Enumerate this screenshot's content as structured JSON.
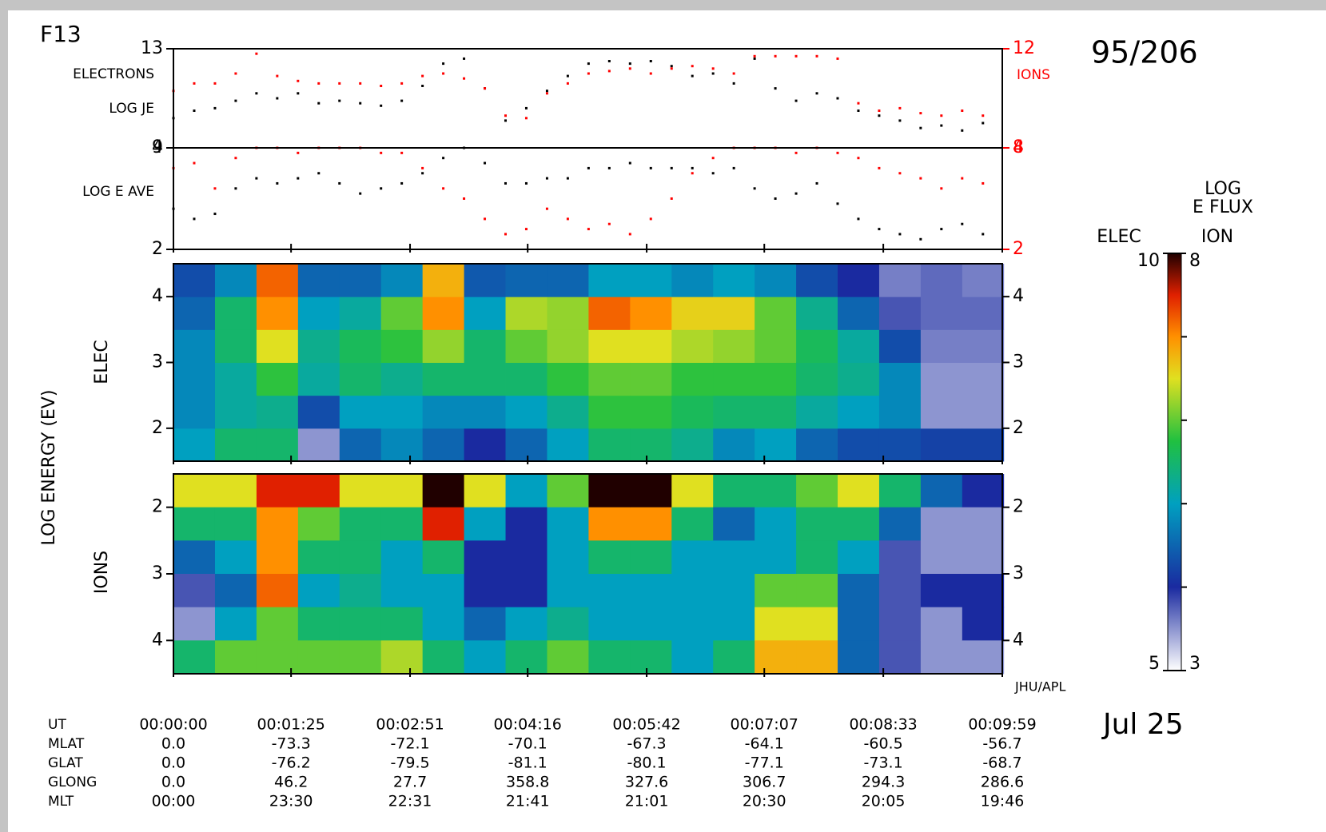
{
  "satellite": "F13",
  "date_code": "95/206",
  "date": "Jul 25",
  "credit": "JHU/APL",
  "energy_axis_label": "LOG ENERGY (EV)",
  "xlim": [
    0,
    599
  ],
  "xticks": [
    0,
    85,
    171,
    256,
    342,
    427,
    513,
    599
  ],
  "chart_data": [
    {
      "type": "scatter",
      "y_axis_labels": [
        "ELECTRONS",
        "LOG JE"
      ],
      "y2_axis_label": "IONS",
      "ylim": [
        9,
        13
      ],
      "yticks": [
        9,
        13
      ],
      "y2lim": [
        8,
        12
      ],
      "y2ticks": [
        8,
        12
      ],
      "x": [
        0,
        15,
        30,
        45,
        60,
        75,
        90,
        105,
        120,
        135,
        150,
        165,
        180,
        195,
        210,
        225,
        240,
        255,
        270,
        285,
        300,
        315,
        330,
        345,
        360,
        375,
        390,
        405,
        420,
        435,
        450,
        465,
        480,
        495,
        510,
        525,
        540,
        555,
        570,
        585
      ],
      "series": [
        {
          "color": "#000000",
          "axis": "y",
          "values": [
            10.2,
            10.5,
            10.6,
            10.9,
            11.2,
            11.0,
            11.2,
            10.8,
            10.9,
            10.8,
            10.7,
            10.9,
            11.5,
            12.4,
            12.6,
            11.4,
            10.1,
            10.6,
            11.3,
            11.9,
            12.4,
            12.5,
            12.4,
            12.5,
            12.3,
            11.9,
            12.0,
            11.6,
            12.6,
            11.4,
            10.9,
            11.2,
            11.0,
            10.5,
            10.3,
            10.1,
            9.8,
            9.9,
            9.7,
            10.0
          ]
        },
        {
          "color": "#ff0000",
          "axis": "y2",
          "values": [
            10.3,
            10.6,
            10.6,
            11.0,
            11.8,
            10.9,
            10.7,
            10.6,
            10.6,
            10.6,
            10.5,
            10.6,
            10.9,
            11.0,
            10.8,
            10.4,
            9.3,
            9.2,
            10.2,
            10.6,
            11.0,
            11.1,
            11.2,
            11.0,
            11.2,
            11.3,
            11.2,
            11.0,
            11.7,
            11.7,
            11.7,
            11.7,
            11.6,
            9.8,
            9.5,
            9.6,
            9.4,
            9.3,
            9.5,
            9.3
          ]
        }
      ]
    },
    {
      "type": "scatter",
      "y_axis_labels": [
        "LOG E AVE"
      ],
      "ylim": [
        2,
        4
      ],
      "yticks": [
        2,
        4
      ],
      "y2lim": [
        2,
        4
      ],
      "y2ticks": [
        2,
        4
      ],
      "x": [
        0,
        15,
        30,
        45,
        60,
        75,
        90,
        105,
        120,
        135,
        150,
        165,
        180,
        195,
        210,
        225,
        240,
        255,
        270,
        285,
        300,
        315,
        330,
        345,
        360,
        375,
        390,
        405,
        420,
        435,
        450,
        465,
        480,
        495,
        510,
        525,
        540,
        555,
        570,
        585
      ],
      "series": [
        {
          "color": "#000000",
          "axis": "y",
          "values": [
            2.8,
            2.6,
            2.7,
            3.2,
            3.4,
            3.3,
            3.4,
            3.5,
            3.3,
            3.1,
            3.2,
            3.3,
            3.5,
            3.8,
            4.0,
            3.7,
            3.3,
            3.3,
            3.4,
            3.4,
            3.6,
            3.6,
            3.7,
            3.6,
            3.6,
            3.6,
            3.5,
            3.6,
            3.2,
            3.0,
            3.1,
            3.3,
            2.9,
            2.6,
            2.4,
            2.3,
            2.2,
            2.4,
            2.5,
            2.3
          ]
        },
        {
          "color": "#ff0000",
          "axis": "y2",
          "values": [
            3.6,
            3.7,
            3.2,
            3.8,
            4.0,
            4.0,
            3.9,
            4.0,
            4.0,
            4.0,
            3.9,
            3.9,
            3.6,
            3.2,
            3.0,
            2.6,
            2.3,
            2.4,
            2.8,
            2.6,
            2.4,
            2.5,
            2.3,
            2.6,
            3.0,
            3.5,
            3.8,
            4.0,
            4.0,
            4.0,
            3.9,
            4.0,
            3.9,
            3.8,
            3.6,
            3.5,
            3.4,
            3.2,
            3.4,
            3.3
          ]
        }
      ]
    },
    {
      "type": "heatmap",
      "ylabel": "ELEC",
      "ylim": [
        1.5,
        4.5
      ],
      "yticks": [
        2,
        3,
        4
      ],
      "zlim": [
        5,
        10
      ],
      "x": [
        15,
        45,
        75,
        105,
        135,
        165,
        195,
        225,
        255,
        285,
        315,
        345,
        375,
        405,
        435,
        465,
        495,
        525,
        555,
        585
      ],
      "y": [
        1.75,
        2.25,
        2.75,
        3.25,
        3.75,
        4.25
      ],
      "values": [
        [
          7,
          6.8,
          6.8,
          6.8,
          6.5,
          6.3
        ],
        [
          7.5,
          7.2,
          7.2,
          7.5,
          7.5,
          6.8
        ],
        [
          7.5,
          7.3,
          7.8,
          8.5,
          9.0,
          9.2
        ],
        [
          5.5,
          6.3,
          7.2,
          7.3,
          7.0,
          6.5
        ],
        [
          6.5,
          7.0,
          7.5,
          7.6,
          7.2,
          6.5
        ],
        [
          6.8,
          7.0,
          7.3,
          7.8,
          8.0,
          6.8
        ],
        [
          6.5,
          6.8,
          7.5,
          8.2,
          9.0,
          8.8
        ],
        [
          6.0,
          6.8,
          7.5,
          7.5,
          7.0,
          6.4
        ],
        [
          6.5,
          7.0,
          7.5,
          8.0,
          8.3,
          6.5
        ],
        [
          7.0,
          7.3,
          7.8,
          8.2,
          8.2,
          6.5
        ],
        [
          7.5,
          7.8,
          8.0,
          8.5,
          9.2,
          7.0
        ],
        [
          7.5,
          7.8,
          8.0,
          8.5,
          9.0,
          7.0
        ],
        [
          7.3,
          7.6,
          7.8,
          8.3,
          8.6,
          6.8
        ],
        [
          6.8,
          7.5,
          7.8,
          8.2,
          8.6,
          7.0
        ],
        [
          7.0,
          7.5,
          7.8,
          8.0,
          8.0,
          6.8
        ],
        [
          6.5,
          7.2,
          7.5,
          7.6,
          7.3,
          6.3
        ],
        [
          6.3,
          7.0,
          7.3,
          7.2,
          6.5,
          6.0
        ],
        [
          6.3,
          6.8,
          6.8,
          6.3,
          5.8,
          5.6
        ],
        [
          6.2,
          5.5,
          5.5,
          5.6,
          5.7,
          5.7
        ],
        [
          6.2,
          5.5,
          5.5,
          5.6,
          5.7,
          5.6
        ]
      ]
    },
    {
      "type": "heatmap",
      "ylabel": "IONS",
      "ylim": [
        4.5,
        1.5
      ],
      "yticks": [
        2,
        3,
        4
      ],
      "zlim": [
        3,
        8
      ],
      "x": [
        15,
        45,
        75,
        105,
        135,
        165,
        195,
        225,
        255,
        285,
        315,
        345,
        375,
        405,
        435,
        465,
        495,
        525,
        555,
        585
      ],
      "y": [
        1.75,
        2.25,
        2.75,
        3.25,
        3.75,
        4.25
      ],
      "values": [
        [
          6.5,
          5.5,
          4.5,
          3.8,
          3.5,
          5.5
        ],
        [
          6.5,
          5.5,
          5.0,
          4.5,
          5.0,
          6.0
        ],
        [
          7.5,
          7.0,
          7.0,
          7.2,
          6.0,
          6.0
        ],
        [
          7.5,
          6.0,
          5.5,
          5.0,
          5.5,
          6.0
        ],
        [
          6.5,
          5.5,
          5.5,
          5.3,
          5.5,
          6.0
        ],
        [
          6.5,
          5.5,
          5.0,
          5.0,
          5.5,
          6.3
        ],
        [
          8.0,
          7.5,
          5.5,
          5.0,
          5.0,
          5.5
        ],
        [
          6.5,
          5.0,
          4.0,
          4.0,
          4.5,
          5.0
        ],
        [
          5.0,
          4.0,
          4.0,
          4.0,
          5.0,
          5.5
        ],
        [
          6.0,
          5.0,
          5.0,
          5.0,
          5.3,
          6.0
        ],
        [
          8.0,
          7.0,
          5.5,
          5.0,
          5.0,
          5.5
        ],
        [
          8.0,
          7.0,
          5.5,
          5.0,
          5.0,
          5.5
        ],
        [
          6.5,
          5.5,
          5.0,
          5.0,
          5.0,
          5.0
        ],
        [
          5.5,
          4.5,
          5.0,
          5.0,
          5.0,
          5.5
        ],
        [
          5.5,
          5.0,
          5.0,
          6.0,
          6.5,
          6.8
        ],
        [
          6.0,
          5.5,
          5.5,
          6.0,
          6.5,
          6.8
        ],
        [
          6.5,
          5.5,
          5.0,
          4.5,
          4.5,
          4.5
        ],
        [
          5.5,
          4.5,
          3.8,
          3.8,
          3.8,
          3.8
        ],
        [
          4.5,
          3.5,
          3.5,
          4.0,
          3.5,
          3.5
        ],
        [
          4.0,
          3.5,
          3.5,
          4.0,
          4.0,
          3.5
        ]
      ]
    }
  ],
  "colorbar": {
    "title": [
      "LOG",
      "E FLUX"
    ],
    "elec_label": "ELEC",
    "ion_label": "ION",
    "elec_ticks": [
      5,
      10
    ],
    "ion_ticks": [
      3,
      8
    ],
    "elec_minor_ticks": [
      6,
      7,
      8,
      9
    ]
  },
  "ephemeris": {
    "rows": [
      [
        "UT",
        "00:00:00",
        "00:01:25",
        "00:02:51",
        "00:04:16",
        "00:05:42",
        "00:07:07",
        "00:08:33",
        "00:09:59"
      ],
      [
        "MLAT",
        "0.0",
        "-73.3",
        "-72.1",
        "-70.1",
        "-67.3",
        "-64.1",
        "-60.5",
        "-56.7"
      ],
      [
        "GLAT",
        "0.0",
        "-76.2",
        "-79.5",
        "-81.1",
        "-80.1",
        "-77.1",
        "-73.1",
        "-68.7"
      ],
      [
        "GLONG",
        "0.0",
        "46.2",
        "27.7",
        "358.8",
        "327.6",
        "306.7",
        "294.3",
        "286.6"
      ],
      [
        "MLT",
        "00:00",
        "23:30",
        "22:31",
        "21:41",
        "21:01",
        "20:30",
        "20:05",
        "19:46"
      ]
    ]
  }
}
